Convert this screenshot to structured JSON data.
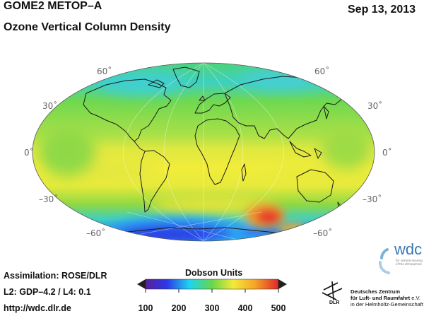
{
  "header": {
    "title": "GOME2 METOP–A",
    "date": "Sep 13, 2013",
    "subtitle": "Ozone Vertical Column Density"
  },
  "map": {
    "projection": "Hammer",
    "lat_labels": {
      "n60": "60˚",
      "n30": "30˚",
      "eq": "0˚",
      "s30": "–30˚",
      "s60": "–60˚"
    },
    "colors": {
      "violet": "#5a1f9c",
      "blue": "#2c38e8",
      "cyan": "#1ed3f0",
      "green": "#68d64a",
      "yellow": "#f4e93a",
      "orange": "#f6a626",
      "red": "#e0262a"
    }
  },
  "footer": {
    "assimilation": "Assimilation: ROSE/DLR",
    "versions": "L2: GDP–4.2 / L4: 0.1",
    "url": "http://wdc.dlr.de"
  },
  "colorbar": {
    "title": "Dobson Units",
    "min": 100,
    "max": 500,
    "ticks": [
      "100",
      "200",
      "300",
      "400",
      "500"
    ]
  },
  "logos": {
    "wdc": {
      "text": "wdc",
      "tagline": "for remote sensing of the atmosphere"
    },
    "dlr": {
      "abbrev": "DLR",
      "line1": "Deutsches Zentrum",
      "line2": "für Luft- und Raumfahrt",
      "ev": "e.V.",
      "line3": "in der Helmholtz-Gemeinschaft"
    }
  }
}
